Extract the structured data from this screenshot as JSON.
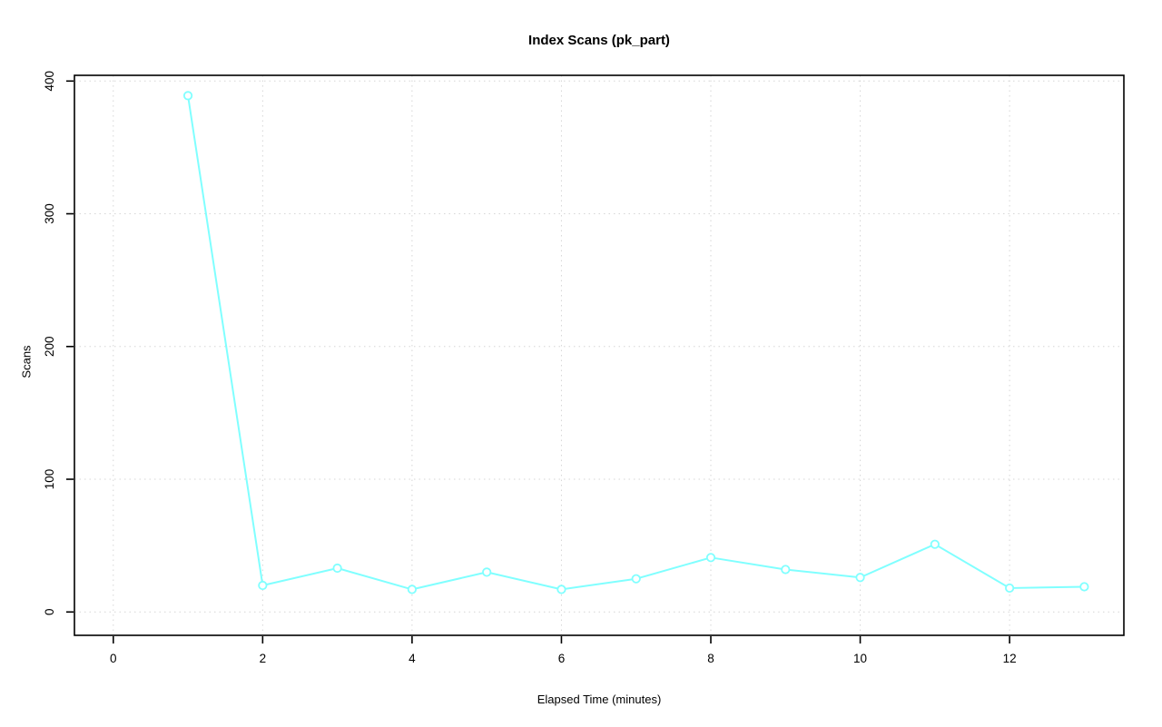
{
  "title": "Index Scans (pk_part)",
  "chart_data": {
    "type": "line",
    "title": "Index Scans (pk_part)",
    "xlabel": "Elapsed Time (minutes)",
    "ylabel": "Scans",
    "x": [
      1,
      2,
      3,
      4,
      5,
      6,
      7,
      8,
      9,
      10,
      11,
      12,
      13
    ],
    "y": [
      389,
      20,
      33,
      17,
      30,
      17,
      25,
      41,
      32,
      26,
      51,
      18,
      19
    ],
    "xticks": [
      0,
      2,
      4,
      6,
      8,
      10,
      12
    ],
    "yticks": [
      0,
      100,
      200,
      300,
      400
    ],
    "xlim": [
      -0.52,
      13.53
    ],
    "ylim": [
      -17.6,
      404.3
    ],
    "grid": "dotted",
    "legend": "none",
    "marker": "open-circle",
    "colors": {
      "line": "#80FFFF",
      "grid": "#D6D6D6",
      "axis": "#000000",
      "tick_label": "#000000",
      "background": "#FFFFFF"
    }
  }
}
